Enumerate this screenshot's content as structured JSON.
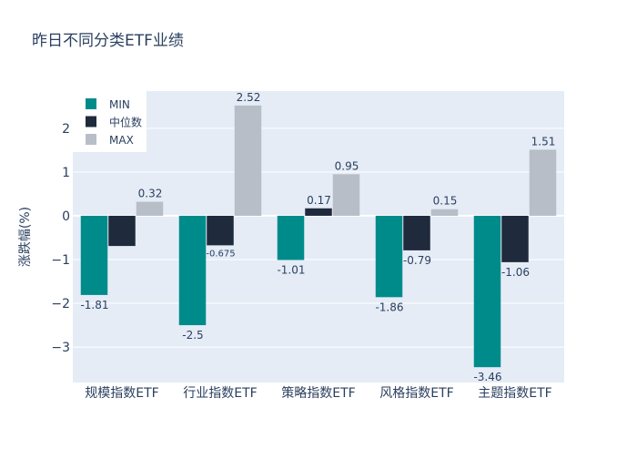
{
  "chart_data": {
    "type": "bar",
    "title": "昨日不同分类ETF业绩",
    "xlabel": "",
    "ylabel": "涨跌幅(%)",
    "ylim": [
      -3.81,
      2.85
    ],
    "yticks": [
      -3,
      -2,
      -1,
      0,
      1,
      2
    ],
    "ytick_labels": [
      "−3",
      "−2",
      "−1",
      "0",
      "1",
      "2"
    ],
    "grid": true,
    "legend_placement": "top-left",
    "categories": [
      "规模指数ETF",
      "行业指数ETF",
      "策略指数ETF",
      "风格指数ETF",
      "主题指数ETF"
    ],
    "series": [
      {
        "name": "MIN",
        "color": "#008B8B",
        "values": [
          -1.81,
          -2.5,
          -1.01,
          -1.86,
          -3.46
        ],
        "labels": [
          "-1.81",
          "-2.5",
          "-1.01",
          "-1.86",
          "-3.46"
        ]
      },
      {
        "name": "中位数",
        "color": "#1F2A3C",
        "values": [
          -0.69,
          -0.675,
          0.17,
          -0.79,
          -1.06
        ],
        "labels": [
          "",
          "-0.675",
          "0.17",
          "-0.79",
          "-1.06"
        ]
      },
      {
        "name": "MAX",
        "color": "#B8BEC7",
        "values": [
          0.32,
          2.52,
          0.95,
          0.15,
          1.51
        ],
        "labels": [
          "0.32",
          "2.52",
          "0.95",
          "0.15",
          "1.51"
        ]
      }
    ]
  }
}
